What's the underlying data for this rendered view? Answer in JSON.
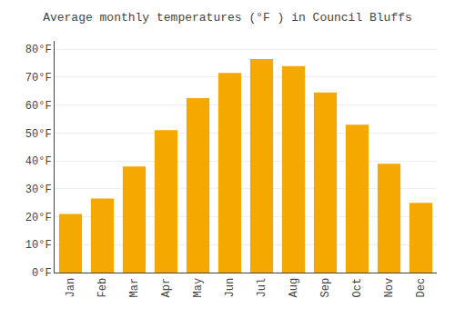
{
  "chart_data": {
    "type": "bar",
    "title": "Average monthly temperatures (°F ) in Council Bluffs",
    "categories": [
      "Jan",
      "Feb",
      "Mar",
      "Apr",
      "May",
      "Jun",
      "Jul",
      "Aug",
      "Sep",
      "Oct",
      "Nov",
      "Dec"
    ],
    "values": [
      21,
      26.5,
      38,
      51,
      62.5,
      71.5,
      76.5,
      74,
      64.5,
      53,
      39,
      25
    ],
    "color": "#F5A800",
    "ylim": [
      0,
      83
    ],
    "yticks": [
      {
        "value": 0,
        "label": "0°F"
      },
      {
        "value": 10,
        "label": "10°F"
      },
      {
        "value": 20,
        "label": "20°F"
      },
      {
        "value": 30,
        "label": "30°F"
      },
      {
        "value": 40,
        "label": "40°F"
      },
      {
        "value": 50,
        "label": "50°F"
      },
      {
        "value": 60,
        "label": "60°F"
      },
      {
        "value": 70,
        "label": "70°F"
      },
      {
        "value": 80,
        "label": "80°F"
      }
    ],
    "grid": true
  }
}
